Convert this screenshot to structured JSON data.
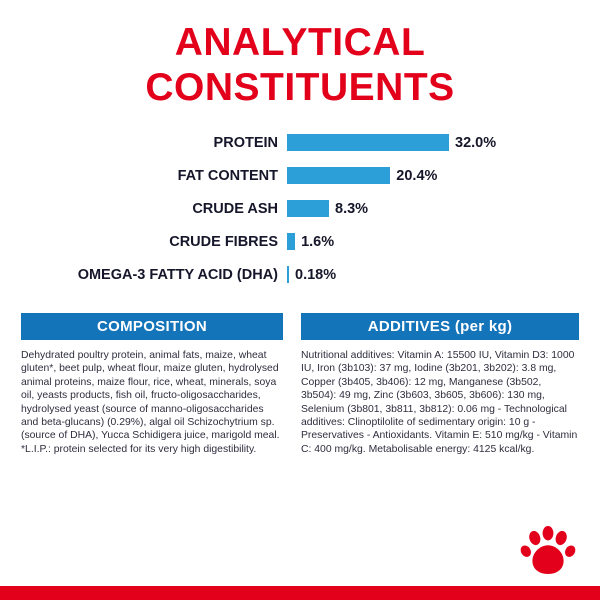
{
  "title": {
    "line1": "ANALYTICAL",
    "line2": "CONSTITUENTS"
  },
  "chart_data": {
    "type": "bar",
    "orientation": "horizontal",
    "title": "Analytical constituents",
    "categories": [
      "PROTEIN",
      "FAT CONTENT",
      "CRUDE ASH",
      "CRUDE FIBRES",
      "OMEGA-3 FATTY ACID (DHA)"
    ],
    "values": [
      32.0,
      20.4,
      8.3,
      1.6,
      0.18
    ],
    "value_labels": [
      "32.0%",
      "20.4%",
      "8.3%",
      "1.6%",
      "0.18%"
    ],
    "unit": "%",
    "xlim": [
      0,
      32
    ],
    "bar_color": "#2d9fd8",
    "grid": false,
    "legend": false
  },
  "sections": {
    "composition": {
      "header": "COMPOSITION",
      "body": "Dehydrated poultry protein, animal fats, maize, wheat gluten*, beet pulp, wheat flour, maize gluten, hydrolysed animal proteins, maize flour, rice, wheat, minerals, soya oil, yeasts products, fish oil, fructo-oligosaccharides, hydrolysed yeast (source of manno-oligosaccharides and beta-glucans) (0.29%), algal oil Schizochytrium sp. (source of DHA), Yucca Schidigera juice, marigold meal. *L.I.P.: protein selected for its very high digestibility."
    },
    "additives": {
      "header": "ADDITIVES (per kg)",
      "body": "Nutritional additives: Vitamin A: 15500 IU, Vitamin D3: 1000 IU, Iron (3b103): 37 mg, Iodine (3b201, 3b202): 3.8 mg, Copper (3b405, 3b406): 12 mg, Manganese (3b502, 3b504): 49 mg, Zinc (3b603, 3b605, 3b606): 130 mg, Selenium (3b801, 3b811, 3b812): 0.06 mg - Technological additives: Clinoptilolite of sedimentary origin: 10 g - Preservatives - Antioxidants. Vitamin E: 510 mg/kg - Vitamin C: 400 mg/kg. Metabolisable energy: 4125 kcal/kg."
    }
  },
  "colors": {
    "brand_red": "#e2001a",
    "bar_blue": "#2d9fd8",
    "header_blue": "#1374ba"
  },
  "icons": {
    "footer": "paw-print-icon"
  }
}
